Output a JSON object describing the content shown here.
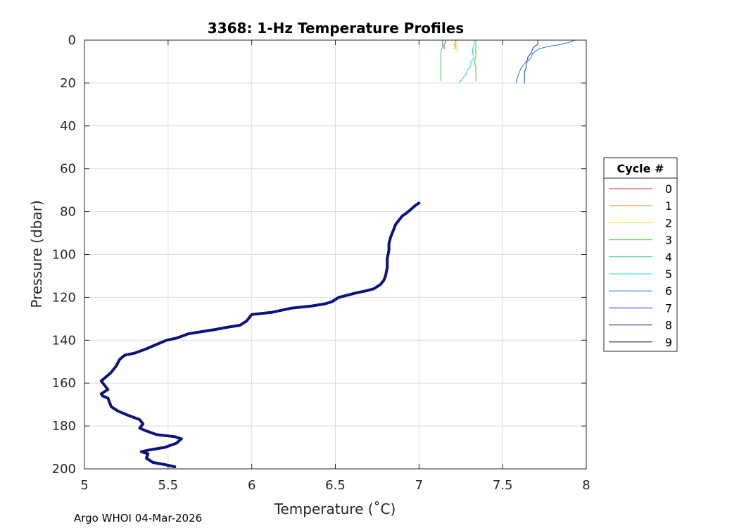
{
  "chart_data": {
    "type": "line",
    "title": "3368: 1-Hz Temperature Profiles",
    "xlabel": "Temperature (˚C)",
    "ylabel": "Pressure (dbar)",
    "xlim": [
      5,
      8
    ],
    "ylim": [
      0,
      200
    ],
    "y_reversed": true,
    "grid": true,
    "x_ticks": [
      5,
      5.5,
      6,
      6.5,
      7,
      7.5,
      8
    ],
    "x_tick_labels": [
      "5",
      "5.5",
      "6",
      "6.5",
      "7",
      "7.5",
      "8"
    ],
    "y_ticks": [
      0,
      20,
      40,
      60,
      80,
      100,
      120,
      140,
      160,
      180,
      200
    ],
    "y_tick_labels": [
      "0",
      "20",
      "40",
      "60",
      "80",
      "100",
      "120",
      "140",
      "160",
      "180",
      "200"
    ],
    "legend": {
      "title": "Cycle #",
      "placement": "outside-right",
      "entries": [
        "0",
        "1",
        "2",
        "3",
        "4",
        "5",
        "6",
        "7",
        "8",
        "9"
      ]
    },
    "footer": "Argo WHOI 04-Mar-2026",
    "series": [
      {
        "name": "0",
        "color": "#d62a1f",
        "width": 1,
        "points": [
          [
            7.16,
            0
          ],
          [
            7.16,
            1
          ],
          [
            7.15,
            2
          ],
          [
            7.15,
            3
          ],
          [
            7.15,
            4
          ]
        ]
      },
      {
        "name": "1",
        "color": "#d9860f",
        "width": 1,
        "points": [
          [
            7.22,
            0
          ],
          [
            7.22,
            1
          ],
          [
            7.21,
            2
          ],
          [
            7.22,
            3
          ],
          [
            7.21,
            4
          ]
        ]
      },
      {
        "name": "2",
        "color": "#f0e000",
        "width": 1,
        "points": [
          [
            7.23,
            0
          ],
          [
            7.23,
            1
          ],
          [
            7.22,
            2
          ],
          [
            7.23,
            4
          ],
          [
            7.22,
            5
          ]
        ]
      },
      {
        "name": "3",
        "color": "#44c830",
        "width": 1,
        "points": [
          [
            7.34,
            0
          ],
          [
            7.34,
            2
          ],
          [
            7.34,
            5
          ],
          [
            7.34,
            8
          ],
          [
            7.33,
            10
          ],
          [
            7.34,
            13
          ],
          [
            7.34,
            16
          ],
          [
            7.34,
            19
          ]
        ]
      },
      {
        "name": "4",
        "color": "#2ed26e",
        "width": 1,
        "points": [
          [
            7.14,
            0
          ],
          [
            7.14,
            3
          ],
          [
            7.13,
            6
          ],
          [
            7.13,
            9
          ],
          [
            7.13,
            12
          ],
          [
            7.13,
            15
          ],
          [
            7.13,
            19
          ]
        ]
      },
      {
        "name": "5",
        "color": "#1bd8d8",
        "width": 1,
        "points": [
          [
            7.33,
            0
          ],
          [
            7.33,
            2
          ],
          [
            7.32,
            4
          ],
          [
            7.32,
            6
          ],
          [
            7.33,
            8
          ],
          [
            7.31,
            10
          ],
          [
            7.31,
            12
          ],
          [
            7.29,
            14
          ],
          [
            7.28,
            16
          ],
          [
            7.26,
            18
          ],
          [
            7.24,
            20
          ]
        ]
      },
      {
        "name": "6",
        "color": "#1a78d8",
        "width": 1,
        "points": [
          [
            7.93,
            0
          ],
          [
            7.9,
            1
          ],
          [
            7.85,
            2
          ],
          [
            7.77,
            3
          ],
          [
            7.72,
            4
          ],
          [
            7.7,
            5
          ],
          [
            7.68,
            6
          ],
          [
            7.67,
            8
          ],
          [
            7.65,
            10
          ],
          [
            7.63,
            11
          ],
          [
            7.61,
            13
          ],
          [
            7.6,
            15
          ],
          [
            7.59,
            17
          ],
          [
            7.58,
            20
          ]
        ]
      },
      {
        "name": "7",
        "color": "#0a32c8",
        "width": 1,
        "points": [
          [
            7.71,
            0
          ],
          [
            7.71,
            2
          ],
          [
            7.69,
            3
          ],
          [
            7.68,
            4
          ],
          [
            7.67,
            6
          ],
          [
            7.65,
            8
          ],
          [
            7.65,
            9
          ],
          [
            7.64,
            10
          ],
          [
            7.64,
            13
          ],
          [
            7.63,
            15
          ],
          [
            7.63,
            18
          ],
          [
            7.63,
            20
          ]
        ]
      },
      {
        "name": "8",
        "color": "#0a147a",
        "width": 4,
        "points": [
          [
            7.0,
            76
          ],
          [
            6.98,
            77
          ],
          [
            6.95,
            79
          ],
          [
            6.92,
            81
          ],
          [
            6.9,
            82
          ],
          [
            6.88,
            84
          ],
          [
            6.86,
            86
          ],
          [
            6.85,
            88
          ],
          [
            6.84,
            90
          ],
          [
            6.83,
            92
          ],
          [
            6.82,
            95
          ],
          [
            6.82,
            98
          ],
          [
            6.81,
            102
          ],
          [
            6.81,
            106
          ],
          [
            6.8,
            110
          ],
          [
            6.79,
            112
          ],
          [
            6.77,
            114
          ],
          [
            6.73,
            116
          ],
          [
            6.68,
            117
          ],
          [
            6.62,
            118
          ],
          [
            6.57,
            119
          ],
          [
            6.52,
            120
          ],
          [
            6.48,
            122
          ],
          [
            6.44,
            123
          ],
          [
            6.36,
            124
          ],
          [
            6.24,
            125
          ],
          [
            6.12,
            127
          ],
          [
            6.0,
            128
          ],
          [
            5.97,
            131
          ],
          [
            5.93,
            133
          ],
          [
            5.85,
            134
          ],
          [
            5.78,
            135
          ],
          [
            5.7,
            136
          ],
          [
            5.62,
            137
          ],
          [
            5.55,
            139
          ],
          [
            5.49,
            140
          ],
          [
            5.43,
            142
          ],
          [
            5.37,
            144
          ],
          [
            5.3,
            146
          ],
          [
            5.24,
            147
          ],
          [
            5.21,
            149
          ],
          [
            5.19,
            152
          ],
          [
            5.16,
            155
          ],
          [
            5.13,
            157
          ],
          [
            5.1,
            159
          ],
          [
            5.12,
            161
          ],
          [
            5.14,
            163
          ],
          [
            5.1,
            165
          ],
          [
            5.11,
            166
          ],
          [
            5.14,
            167
          ],
          [
            5.15,
            169
          ],
          [
            5.16,
            171
          ],
          [
            5.2,
            173
          ],
          [
            5.26,
            175
          ],
          [
            5.33,
            177
          ],
          [
            5.35,
            179
          ],
          [
            5.33,
            181
          ],
          [
            5.36,
            182
          ],
          [
            5.43,
            184
          ],
          [
            5.54,
            185
          ],
          [
            5.58,
            186
          ],
          [
            5.55,
            188
          ],
          [
            5.48,
            190
          ],
          [
            5.4,
            191
          ],
          [
            5.34,
            192
          ],
          [
            5.38,
            193
          ],
          [
            5.37,
            195
          ],
          [
            5.41,
            197
          ],
          [
            5.48,
            198
          ],
          [
            5.54,
            199
          ]
        ]
      },
      {
        "name": "9",
        "color": "#000000",
        "width": 1,
        "points": []
      }
    ]
  }
}
